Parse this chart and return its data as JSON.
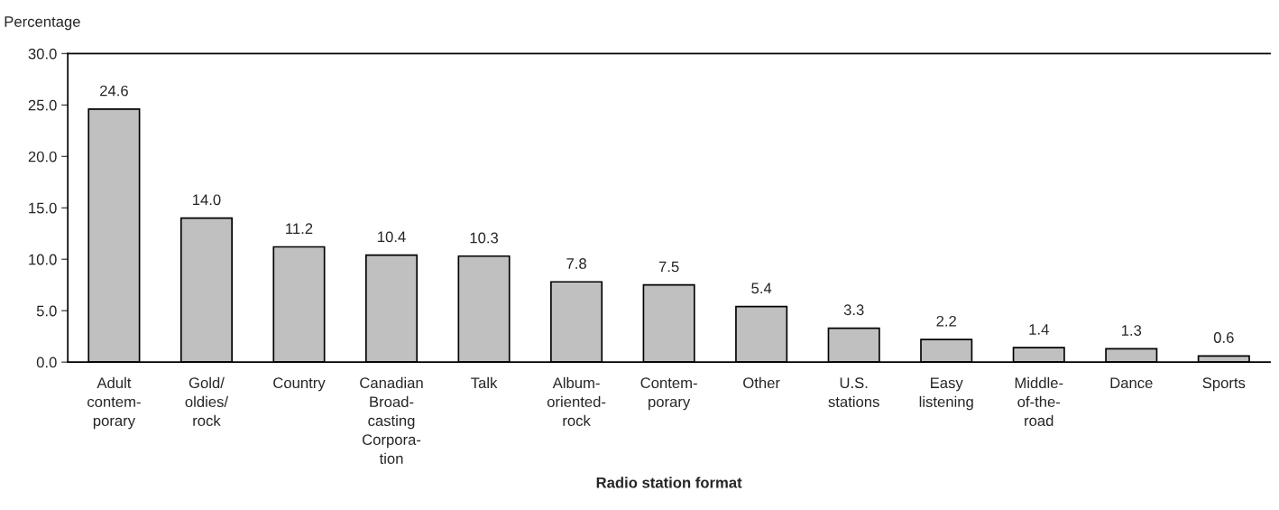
{
  "chart_data": {
    "type": "bar",
    "xlabel": "Radio station format",
    "ylabel": "Percentage",
    "categories": [
      "Adult\ncontem-\nporary",
      "Gold/\noldies/\nrock",
      "Country",
      "Canadian\nBroad-\ncasting\nCorpora-\ntion",
      "Talk",
      "Album-\noriented-\nrock",
      "Contem-\nporary",
      "Other",
      "U.S.\nstations",
      "Easy\nlistening",
      "Middle-\nof-the-\nroad",
      "Dance",
      "Sports"
    ],
    "values": [
      24.6,
      14.0,
      11.2,
      10.4,
      10.3,
      7.8,
      7.5,
      5.4,
      3.3,
      2.2,
      1.4,
      1.3,
      0.6
    ],
    "value_labels": [
      "24.6",
      "14.0",
      "11.2",
      "10.4",
      "10.3",
      "7.8",
      "7.5",
      "5.4",
      "3.3",
      "2.2",
      "1.4",
      "1.3",
      "0.6"
    ],
    "color": "#c0c0c0",
    "ylim": [
      0,
      30
    ],
    "yticks": [
      {
        "value": 0,
        "label": "0.0"
      },
      {
        "value": 5,
        "label": "5.0"
      },
      {
        "value": 10,
        "label": "10.0"
      },
      {
        "value": 15,
        "label": "15.0"
      },
      {
        "value": 20,
        "label": "20.0"
      },
      {
        "value": 25,
        "label": "25.0"
      },
      {
        "value": 30,
        "label": "30.0"
      }
    ],
    "grid": false,
    "legend": false
  }
}
